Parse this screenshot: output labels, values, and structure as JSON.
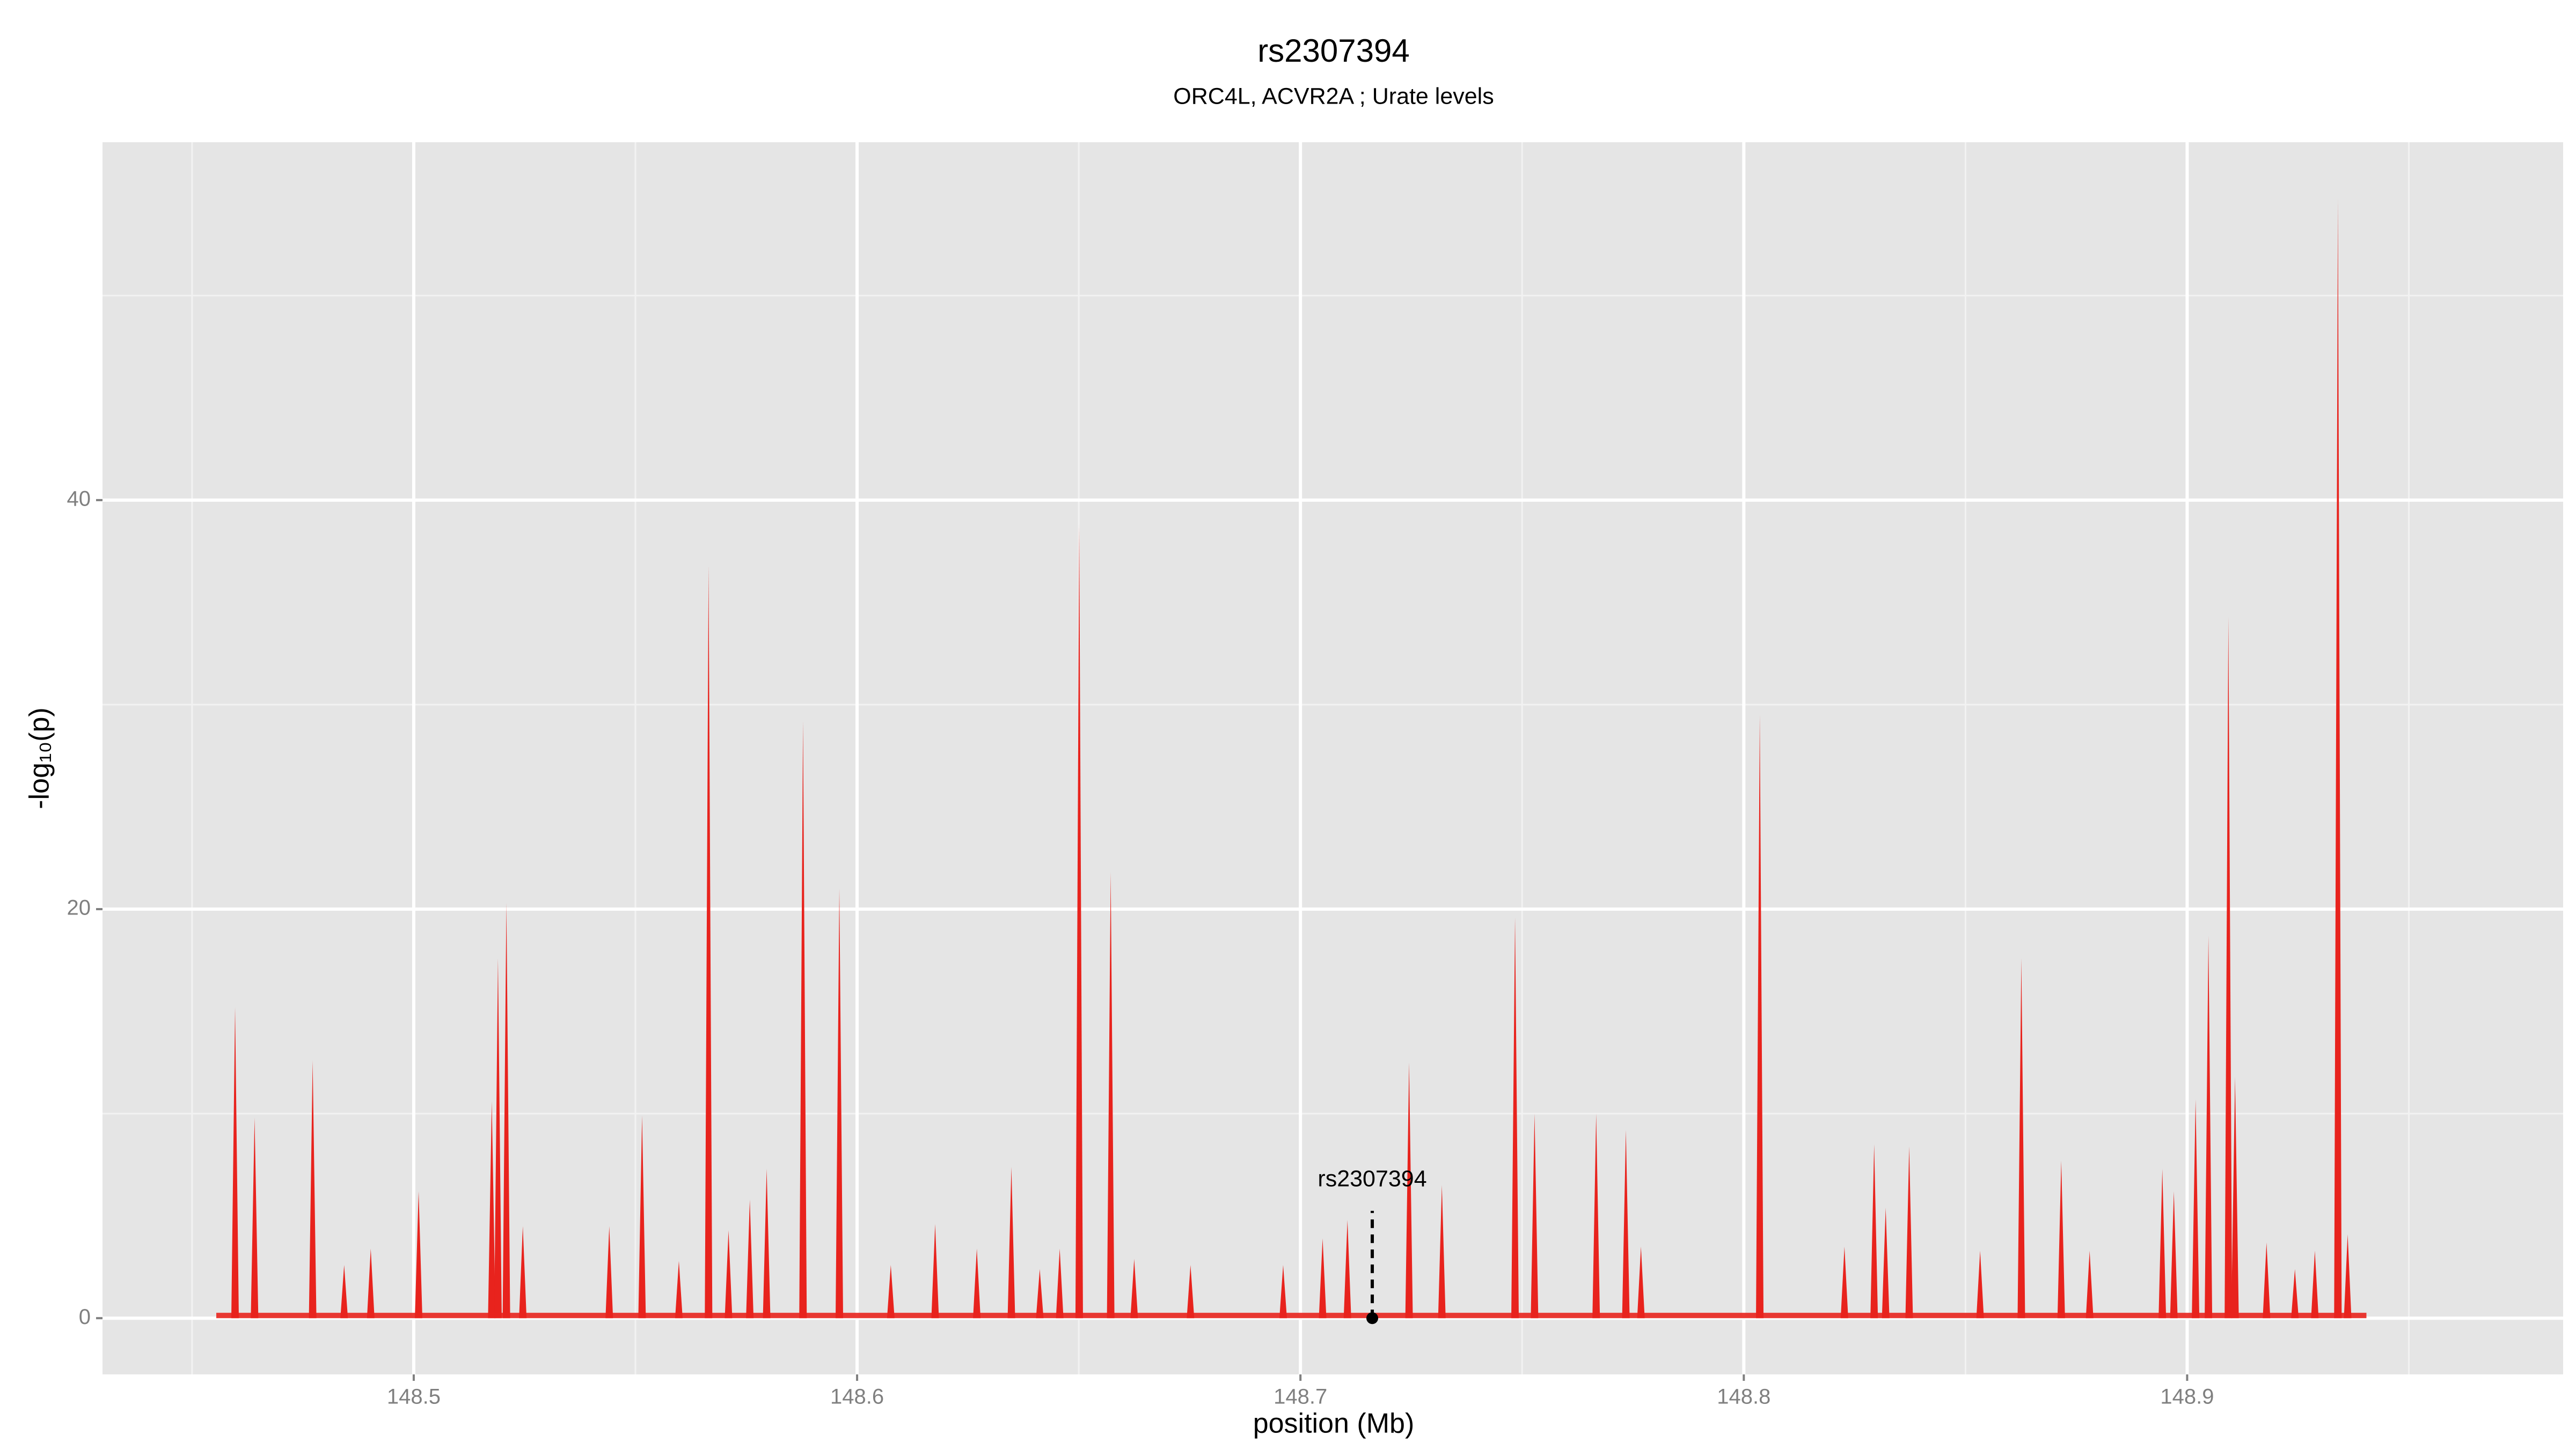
{
  "chart_data": {
    "type": "spike",
    "title": "rs2307394",
    "subtitle": "ORC4L, ACVR2A ; Urate levels",
    "x_label": "position (Mb)",
    "y_label": "-log₁₀(p)",
    "color": "#e8231d",
    "grid": true,
    "xlim": [
      148.4298,
      148.9848
    ],
    "ylim": [
      -2.75,
      57.5
    ],
    "xticks": [
      148.5,
      148.6,
      148.7,
      148.8,
      148.9
    ],
    "yticks": [
      0,
      20,
      40
    ],
    "x": [
      148.4597,
      148.4641,
      148.4772,
      148.4843,
      148.4903,
      148.5011,
      148.5176,
      148.519,
      148.5209,
      148.5246,
      148.5441,
      148.5515,
      148.5598,
      148.5665,
      148.571,
      148.5758,
      148.5796,
      148.5878,
      148.596,
      148.6076,
      148.6176,
      148.627,
      148.6348,
      148.6412,
      148.6457,
      148.6501,
      148.6572,
      148.6625,
      148.6752,
      148.6961,
      148.705,
      148.7106,
      148.7245,
      148.7319,
      148.7484,
      148.7528,
      148.7667,
      148.7734,
      148.7768,
      148.8036,
      148.8227,
      148.8294,
      148.832,
      148.8373,
      148.8533,
      148.8626,
      148.8716,
      148.878,
      148.8944,
      148.897,
      148.9019,
      148.9048,
      148.9093,
      148.9108,
      148.9179,
      148.9243,
      148.9288,
      148.934,
      148.9362
    ],
    "values": [
      15.2,
      9.8,
      12.6,
      2.6,
      3.4,
      6.2,
      10.6,
      17.6,
      20.3,
      4.5,
      4.5,
      9.9,
      2.8,
      36.8,
      4.3,
      5.8,
      7.3,
      29.2,
      21,
      2.6,
      4.6,
      3.4,
      7.4,
      2.4,
      3.4,
      38.8,
      21.8,
      2.9,
      2.6,
      2.6,
      3.9,
      4.8,
      12.5,
      6.5,
      19.6,
      10,
      10,
      9.2,
      3.5,
      29.5,
      3.5,
      8.5,
      5.4,
      8.4,
      3.3,
      17.6,
      7.7,
      3.3,
      7.3,
      6.2,
      10.7,
      18.7,
      34.3,
      11.8,
      3.7,
      2.4,
      3.3,
      54.7,
      4.1
    ],
    "annotations": [
      {
        "label": "rs2307394",
        "x": 148.7162
      }
    ]
  }
}
